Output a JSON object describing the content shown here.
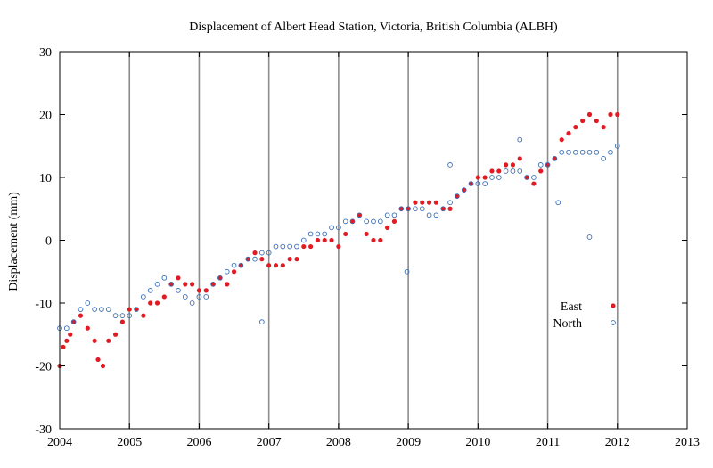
{
  "chart_data": {
    "type": "scatter",
    "title": "Displacement of Albert Head Station, Victoria, British Columbia (ALBH)",
    "xlabel": "",
    "ylabel": "Displacement (mm)",
    "xlim": [
      2004,
      2013
    ],
    "ylim": [
      -30,
      30
    ],
    "x_ticks": [
      "2004",
      "2005",
      "2006",
      "2007",
      "2008",
      "2009",
      "2010",
      "2011",
      "2012",
      "2013"
    ],
    "y_ticks": [
      "-30",
      "-20",
      "-10",
      "0",
      "10",
      "20",
      "30"
    ],
    "event_lines": [
      2005.0,
      2006.0,
      2007.0,
      2008.0,
      2009.0,
      2010.0,
      2011.0,
      2012.0
    ],
    "grid": false,
    "legend_position": "right",
    "series": [
      {
        "name": "East",
        "marker": "filled-circle",
        "color": "#e01b24",
        "points": [
          [
            2004.0,
            -20
          ],
          [
            2004.05,
            -17
          ],
          [
            2004.1,
            -16
          ],
          [
            2004.15,
            -15
          ],
          [
            2004.2,
            -13
          ],
          [
            2004.3,
            -12
          ],
          [
            2004.4,
            -14
          ],
          [
            2004.5,
            -16
          ],
          [
            2004.55,
            -19
          ],
          [
            2004.62,
            -20
          ],
          [
            2004.7,
            -16
          ],
          [
            2004.8,
            -15
          ],
          [
            2004.9,
            -13
          ],
          [
            2005.0,
            -11
          ],
          [
            2005.1,
            -11
          ],
          [
            2005.2,
            -12
          ],
          [
            2005.3,
            -10
          ],
          [
            2005.4,
            -10
          ],
          [
            2005.5,
            -9
          ],
          [
            2005.6,
            -7
          ],
          [
            2005.7,
            -6
          ],
          [
            2005.8,
            -7
          ],
          [
            2005.9,
            -7
          ],
          [
            2006.0,
            -8
          ],
          [
            2006.1,
            -8
          ],
          [
            2006.2,
            -7
          ],
          [
            2006.3,
            -6
          ],
          [
            2006.4,
            -7
          ],
          [
            2006.5,
            -5
          ],
          [
            2006.6,
            -4
          ],
          [
            2006.7,
            -3
          ],
          [
            2006.8,
            -2
          ],
          [
            2006.9,
            -3
          ],
          [
            2007.0,
            -4
          ],
          [
            2007.1,
            -4
          ],
          [
            2007.2,
            -4
          ],
          [
            2007.3,
            -3
          ],
          [
            2007.4,
            -3
          ],
          [
            2007.5,
            -1
          ],
          [
            2007.6,
            -1
          ],
          [
            2007.7,
            0
          ],
          [
            2007.8,
            0
          ],
          [
            2007.9,
            0
          ],
          [
            2008.0,
            -1
          ],
          [
            2008.1,
            1
          ],
          [
            2008.2,
            3
          ],
          [
            2008.3,
            4
          ],
          [
            2008.4,
            1
          ],
          [
            2008.5,
            0
          ],
          [
            2008.6,
            0
          ],
          [
            2008.7,
            2
          ],
          [
            2008.8,
            3
          ],
          [
            2008.9,
            5
          ],
          [
            2009.0,
            5
          ],
          [
            2009.1,
            6
          ],
          [
            2009.2,
            6
          ],
          [
            2009.3,
            6
          ],
          [
            2009.4,
            6
          ],
          [
            2009.5,
            5
          ],
          [
            2009.6,
            5
          ],
          [
            2009.7,
            7
          ],
          [
            2009.8,
            8
          ],
          [
            2009.9,
            9
          ],
          [
            2010.0,
            10
          ],
          [
            2010.1,
            10
          ],
          [
            2010.2,
            11
          ],
          [
            2010.3,
            11
          ],
          [
            2010.4,
            12
          ],
          [
            2010.5,
            12
          ],
          [
            2010.6,
            13
          ],
          [
            2010.7,
            10
          ],
          [
            2010.8,
            9
          ],
          [
            2010.9,
            11
          ],
          [
            2011.0,
            12
          ],
          [
            2011.1,
            13
          ],
          [
            2011.2,
            16
          ],
          [
            2011.3,
            17
          ],
          [
            2011.4,
            18
          ],
          [
            2011.5,
            19
          ],
          [
            2011.6,
            20
          ],
          [
            2011.7,
            19
          ],
          [
            2011.8,
            18
          ],
          [
            2011.9,
            20
          ],
          [
            2012.0,
            20
          ]
        ]
      },
      {
        "name": "North",
        "marker": "open-circle",
        "color": "#3a6fb5",
        "points": [
          [
            2004.0,
            -14
          ],
          [
            2004.1,
            -14
          ],
          [
            2004.2,
            -13
          ],
          [
            2004.3,
            -11
          ],
          [
            2004.4,
            -10
          ],
          [
            2004.5,
            -11
          ],
          [
            2004.6,
            -11
          ],
          [
            2004.7,
            -11
          ],
          [
            2004.8,
            -12
          ],
          [
            2004.9,
            -12
          ],
          [
            2005.0,
            -12
          ],
          [
            2005.1,
            -11
          ],
          [
            2005.2,
            -9
          ],
          [
            2005.3,
            -8
          ],
          [
            2005.4,
            -7
          ],
          [
            2005.5,
            -6
          ],
          [
            2005.6,
            -7
          ],
          [
            2005.7,
            -8
          ],
          [
            2005.8,
            -9
          ],
          [
            2005.9,
            -10
          ],
          [
            2006.0,
            -9
          ],
          [
            2006.1,
            -9
          ],
          [
            2006.2,
            -7
          ],
          [
            2006.3,
            -6
          ],
          [
            2006.4,
            -5
          ],
          [
            2006.5,
            -4
          ],
          [
            2006.6,
            -4
          ],
          [
            2006.7,
            -3
          ],
          [
            2006.8,
            -3
          ],
          [
            2006.9,
            -2
          ],
          [
            2007.0,
            -2
          ],
          [
            2007.1,
            -1
          ],
          [
            2007.2,
            -1
          ],
          [
            2007.3,
            -1
          ],
          [
            2007.4,
            -1
          ],
          [
            2007.5,
            0
          ],
          [
            2007.6,
            1
          ],
          [
            2007.7,
            1
          ],
          [
            2007.8,
            1
          ],
          [
            2007.9,
            2
          ],
          [
            2008.0,
            2
          ],
          [
            2008.1,
            3
          ],
          [
            2008.2,
            3
          ],
          [
            2008.3,
            4
          ],
          [
            2008.4,
            3
          ],
          [
            2008.5,
            3
          ],
          [
            2008.6,
            3
          ],
          [
            2008.7,
            4
          ],
          [
            2008.8,
            4
          ],
          [
            2008.9,
            5
          ],
          [
            2009.0,
            5
          ],
          [
            2009.1,
            5
          ],
          [
            2009.2,
            5
          ],
          [
            2009.3,
            4
          ],
          [
            2009.4,
            4
          ],
          [
            2009.5,
            5
          ],
          [
            2009.6,
            6
          ],
          [
            2009.7,
            7
          ],
          [
            2009.8,
            8
          ],
          [
            2009.9,
            9
          ],
          [
            2010.0,
            9
          ],
          [
            2010.1,
            9
          ],
          [
            2010.2,
            10
          ],
          [
            2010.3,
            10
          ],
          [
            2010.4,
            11
          ],
          [
            2010.5,
            11
          ],
          [
            2010.6,
            11
          ],
          [
            2010.7,
            10
          ],
          [
            2010.8,
            10
          ],
          [
            2010.9,
            12
          ],
          [
            2011.0,
            12
          ],
          [
            2011.1,
            13
          ],
          [
            2011.2,
            14
          ],
          [
            2011.3,
            14
          ],
          [
            2011.4,
            14
          ],
          [
            2011.5,
            14
          ],
          [
            2011.6,
            14
          ],
          [
            2011.7,
            14
          ],
          [
            2011.8,
            13
          ],
          [
            2011.9,
            14
          ],
          [
            2012.0,
            15
          ],
          [
            2008.98,
            -5
          ],
          [
            2011.15,
            6
          ],
          [
            2011.6,
            0.5
          ],
          [
            2006.9,
            -13
          ],
          [
            2009.6,
            12
          ],
          [
            2010.6,
            16
          ]
        ]
      }
    ]
  }
}
